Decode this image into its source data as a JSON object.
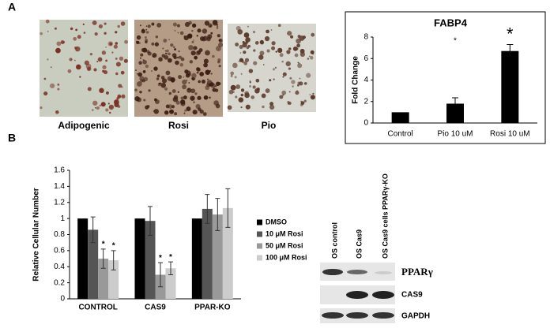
{
  "panels": {
    "a": "A",
    "b": "B"
  },
  "images": [
    "Adipogenic",
    "Rosi",
    "Pio"
  ],
  "blot": {
    "lanes": [
      "OS control",
      "OS Cas9",
      "OS Cas9 cells PPARγ-KO"
    ],
    "bands": [
      "PPARγ",
      "CAS9",
      "GAPDH"
    ]
  },
  "chart_data": [
    {
      "type": "bar",
      "title": "FABP4",
      "y_label": "Fold Change",
      "categories": [
        "Control",
        "Pio 10 uM",
        "Rosi 10 uM"
      ],
      "values": [
        1,
        1.8,
        6.7
      ],
      "errors": [
        0,
        0.55,
        0.6
      ],
      "color": "#000000",
      "ylim": [
        0,
        8
      ],
      "yticks": [
        0,
        2,
        4,
        6,
        8
      ],
      "annotations": [
        {
          "text": "*",
          "category": 1
        },
        {
          "text": "*",
          "category": 2
        }
      ]
    },
    {
      "type": "grouped_bar",
      "y_label": "Relative Cellular Number",
      "categories": [
        "CONTROL",
        "CAS9",
        "PPAR-KO"
      ],
      "series": [
        {
          "name": "DMSO",
          "color": "#000000",
          "values": [
            1,
            1,
            1
          ]
        },
        {
          "name": "10 μM Rosi",
          "color": "#555555",
          "values": [
            0.86,
            0.97,
            1.12
          ],
          "errors": [
            0.16,
            0.18,
            0.18
          ]
        },
        {
          "name": "50 μM Rosi",
          "color": "#999999",
          "values": [
            0.5,
            0.3,
            1.05
          ],
          "errors": [
            0.12,
            0.15,
            0.2
          ]
        },
        {
          "name": "100 μM Rosi",
          "color": "#cccccc",
          "values": [
            0.48,
            0.38,
            1.13
          ],
          "errors": [
            0.12,
            0.08,
            0.24
          ]
        }
      ],
      "ylim": [
        0,
        1.6
      ],
      "yticks": [
        0,
        0.2,
        0.4,
        0.6,
        0.8,
        1,
        1.2,
        1.4,
        1.6
      ],
      "legend": "right",
      "annotations": [
        {
          "text": "*",
          "series": 2,
          "category": 0
        },
        {
          "text": "*",
          "series": 3,
          "category": 0
        },
        {
          "text": "*",
          "series": 2,
          "category": 1
        },
        {
          "text": "*",
          "series": 3,
          "category": 1
        }
      ]
    }
  ]
}
